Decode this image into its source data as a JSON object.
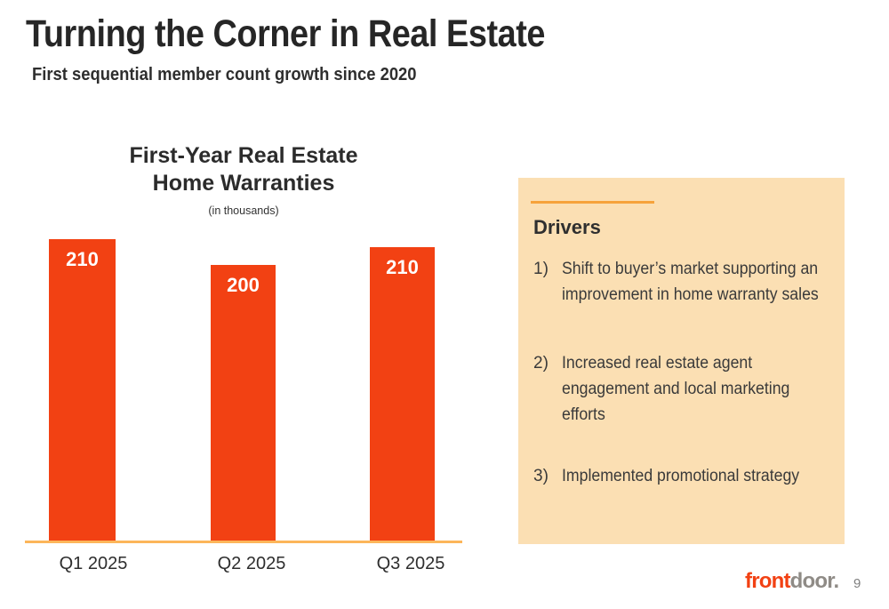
{
  "slide": {
    "title": "Turning the Corner in Real Estate",
    "subtitle": "First sequential member count growth since 2020"
  },
  "chart": {
    "title_line1": "First-Year Real Estate",
    "title_line2": "Home Warranties",
    "units_note": "(in thousands)"
  },
  "chart_data": {
    "type": "bar",
    "title": "First-Year Real Estate Home Warranties",
    "units": "in thousands",
    "categories": [
      "Q1 2025",
      "Q2 2025",
      "Q3 2025"
    ],
    "values": [
      210,
      200,
      210
    ],
    "value_labels": [
      "210",
      "200",
      "210"
    ],
    "value_label_position": "inside-top",
    "bar_color": "#F24113",
    "axis_line_color": "#FCB65A",
    "grid": false,
    "legend": false,
    "ylim": [
      0,
      220
    ]
  },
  "drivers_panel": {
    "heading": "Drivers",
    "background_color": "#FBDFB3",
    "accent_line_color": "#F6A33B",
    "items": [
      {
        "number": "1)",
        "text": "Shift to buyer’s market supporting an improvement in home warranty sales",
        "lines": [
          "Shift to buyer’s market supporting an",
          "improvement in home warranty sales"
        ]
      },
      {
        "number": "2)",
        "text": "Increased real estate agent engagement and local marketing efforts",
        "lines": [
          "Increased real estate agent",
          "engagement and local marketing",
          "efforts"
        ]
      },
      {
        "number": "3)",
        "text": "Implemented promotional strategy",
        "lines": [
          "Implemented promotional strategy"
        ]
      }
    ]
  },
  "footer": {
    "logo_front": "front",
    "logo_door": "door.",
    "page_number": "9"
  }
}
